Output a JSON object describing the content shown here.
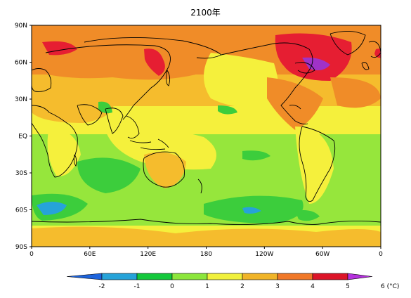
{
  "title": "2100年",
  "map": {
    "lat_labels": [
      "90N",
      "60N",
      "30N",
      "EQ",
      "30S",
      "60S",
      "90S"
    ],
    "lon_labels": [
      "0",
      "60E",
      "120E",
      "180",
      "120W",
      "60W",
      "0"
    ]
  },
  "colorbar": {
    "labels": [
      "-2",
      "-1",
      "0",
      "1",
      "2",
      "3",
      "4",
      "5",
      "6"
    ],
    "unit": "(°C)",
    "colors": [
      "#1e64dc",
      "#26a3d9",
      "#14c83c",
      "#8ce63c",
      "#f0f03c",
      "#f0b428",
      "#f07828",
      "#dc1428",
      "#b432dc"
    ]
  },
  "colors": {
    "warm4": "#f08c28",
    "warm3": "#f5bc2d",
    "warm2": "#f5f03c",
    "warm1": "#96e63c",
    "cool0": "#3ccd3c",
    "cold": "#26a3d9",
    "hot5": "#e61e32",
    "hot6": "#a032c8",
    "coast": "#000000"
  }
}
